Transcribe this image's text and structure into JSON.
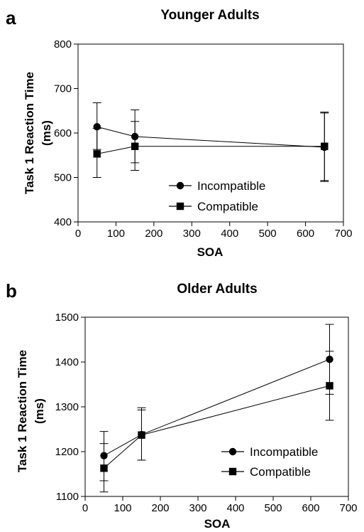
{
  "chart_data": [
    {
      "type": "line",
      "panel": "a",
      "title": "Younger Adults",
      "xlabel": "SOA",
      "ylabel_line1": "Task 1 Reaction Time",
      "ylabel_line2": "(ms)",
      "xlim": [
        0,
        700
      ],
      "ylim": [
        400,
        800
      ],
      "xticks": [
        0,
        100,
        200,
        300,
        400,
        500,
        600,
        700
      ],
      "yticks": [
        400,
        500,
        600,
        700,
        800
      ],
      "legend_position": "bottom-center",
      "series": [
        {
          "name": "Incompatible",
          "marker": "circle",
          "x": [
            50,
            150,
            650
          ],
          "y": [
            614,
            592,
            568
          ],
          "err_low": [
            563,
            533,
            491
          ],
          "err_high": [
            668,
            652,
            645
          ]
        },
        {
          "name": "Compatible",
          "marker": "square",
          "x": [
            50,
            150,
            650
          ],
          "y": [
            553,
            570,
            570
          ],
          "err_low": [
            500,
            516,
            493
          ],
          "err_high": [
            610,
            626,
            647
          ]
        }
      ]
    },
    {
      "type": "line",
      "panel": "b",
      "title": "Older Adults",
      "xlabel": "SOA",
      "ylabel_line1": "Task 1 Reaction Time",
      "ylabel_line2": "(ms)",
      "xlim": [
        0,
        700
      ],
      "ylim": [
        1100,
        1500
      ],
      "xticks": [
        0,
        100,
        200,
        300,
        400,
        500,
        600,
        700
      ],
      "yticks": [
        1100,
        1200,
        1300,
        1400,
        1500
      ],
      "legend_position": "bottom-right",
      "series": [
        {
          "name": "Incompatible",
          "marker": "circle",
          "x": [
            50,
            150,
            650
          ],
          "y": [
            1191,
            1238,
            1406
          ],
          "err_low": [
            1135,
            1181,
            1328
          ],
          "err_high": [
            1245,
            1293,
            1484
          ]
        },
        {
          "name": "Compatible",
          "marker": "square",
          "x": [
            50,
            150,
            650
          ],
          "y": [
            1163,
            1237,
            1347
          ],
          "err_low": [
            1110,
            1181,
            1270
          ],
          "err_high": [
            1218,
            1298,
            1424
          ]
        }
      ]
    }
  ]
}
